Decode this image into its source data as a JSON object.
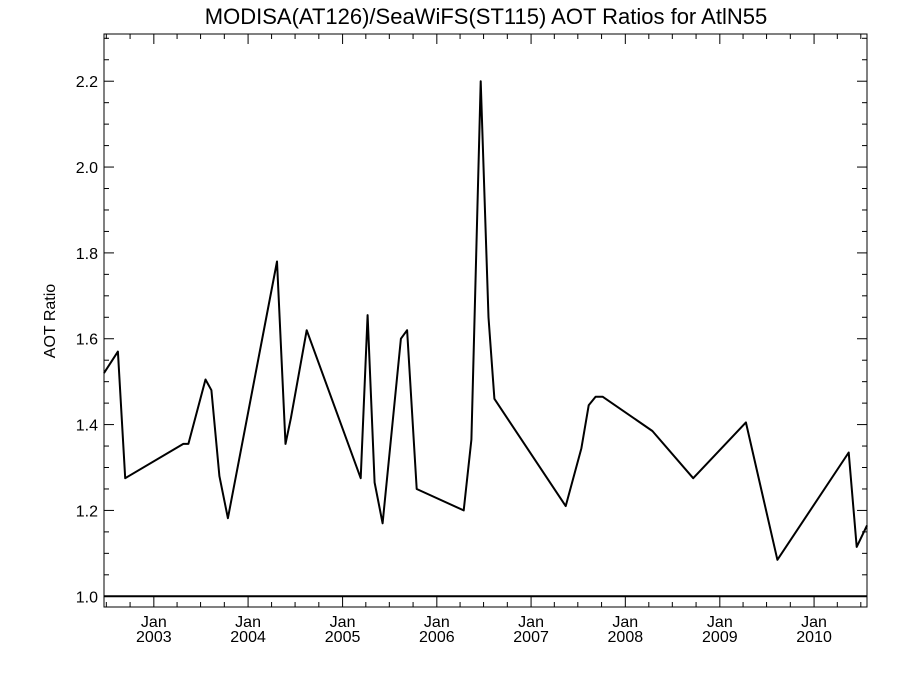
{
  "chart_data": {
    "type": "line",
    "title": "MODISA(AT126)/SeaWiFS(ST115)  AOT Ratios for AtlN55",
    "xlabel": "",
    "ylabel": "AOT Ratio",
    "xlim": [
      "2002-06-22",
      "2010-07-25"
    ],
    "ylim": [
      0.975,
      2.31
    ],
    "yticks": [
      {
        "value": 1.0,
        "label": "1.0"
      },
      {
        "value": 1.2,
        "label": "1.2"
      },
      {
        "value": 1.4,
        "label": "1.4"
      },
      {
        "value": 1.6,
        "label": "1.6"
      },
      {
        "value": 1.8,
        "label": "1.8"
      },
      {
        "value": 2.0,
        "label": "2.0"
      },
      {
        "value": 2.2,
        "label": "2.2"
      }
    ],
    "xticks": [
      {
        "date": "2003-01-01",
        "label": "Jan",
        "year": "2003"
      },
      {
        "date": "2004-01-01",
        "label": "Jan",
        "year": "2004"
      },
      {
        "date": "2005-01-01",
        "label": "Jan",
        "year": "2005"
      },
      {
        "date": "2006-01-01",
        "label": "Jan",
        "year": "2006"
      },
      {
        "date": "2007-01-01",
        "label": "Jan",
        "year": "2007"
      },
      {
        "date": "2008-01-01",
        "label": "Jan",
        "year": "2008"
      },
      {
        "date": "2009-01-01",
        "label": "Jan",
        "year": "2009"
      },
      {
        "date": "2010-01-01",
        "label": "Jan",
        "year": "2010"
      }
    ],
    "reference_line": 1.0,
    "series": [
      {
        "points": [
          {
            "x": "2002-06-22",
            "y": 1.52
          },
          {
            "x": "2002-08-15",
            "y": 1.57
          },
          {
            "x": "2002-09-12",
            "y": 1.275
          },
          {
            "x": "2003-04-25",
            "y": 1.355
          },
          {
            "x": "2003-05-15",
            "y": 1.355
          },
          {
            "x": "2003-07-20",
            "y": 1.505
          },
          {
            "x": "2003-08-12",
            "y": 1.48
          },
          {
            "x": "2003-09-12",
            "y": 1.28
          },
          {
            "x": "2003-10-15",
            "y": 1.182
          },
          {
            "x": "2004-04-22",
            "y": 1.78
          },
          {
            "x": "2004-05-25",
            "y": 1.355
          },
          {
            "x": "2004-06-15",
            "y": 1.415
          },
          {
            "x": "2004-08-15",
            "y": 1.62
          },
          {
            "x": "2005-03-12",
            "y": 1.275
          },
          {
            "x": "2005-04-08",
            "y": 1.655
          },
          {
            "x": "2005-05-05",
            "y": 1.265
          },
          {
            "x": "2005-06-05",
            "y": 1.17
          },
          {
            "x": "2005-08-15",
            "y": 1.6
          },
          {
            "x": "2005-09-08",
            "y": 1.62
          },
          {
            "x": "2005-10-15",
            "y": 1.25
          },
          {
            "x": "2006-04-15",
            "y": 1.2
          },
          {
            "x": "2006-05-15",
            "y": 1.365
          },
          {
            "x": "2006-06-20",
            "y": 2.2
          },
          {
            "x": "2006-07-20",
            "y": 1.65
          },
          {
            "x": "2006-08-12",
            "y": 1.46
          },
          {
            "x": "2007-05-15",
            "y": 1.21
          },
          {
            "x": "2007-07-15",
            "y": 1.345
          },
          {
            "x": "2007-08-12",
            "y": 1.445
          },
          {
            "x": "2007-09-08",
            "y": 1.465
          },
          {
            "x": "2007-10-05",
            "y": 1.465
          },
          {
            "x": "2008-04-15",
            "y": 1.385
          },
          {
            "x": "2008-09-20",
            "y": 1.275
          },
          {
            "x": "2009-04-12",
            "y": 1.405
          },
          {
            "x": "2009-08-12",
            "y": 1.085
          },
          {
            "x": "2010-05-15",
            "y": 1.335
          },
          {
            "x": "2010-06-15",
            "y": 1.115
          },
          {
            "x": "2010-07-25",
            "y": 1.165
          }
        ]
      }
    ]
  }
}
